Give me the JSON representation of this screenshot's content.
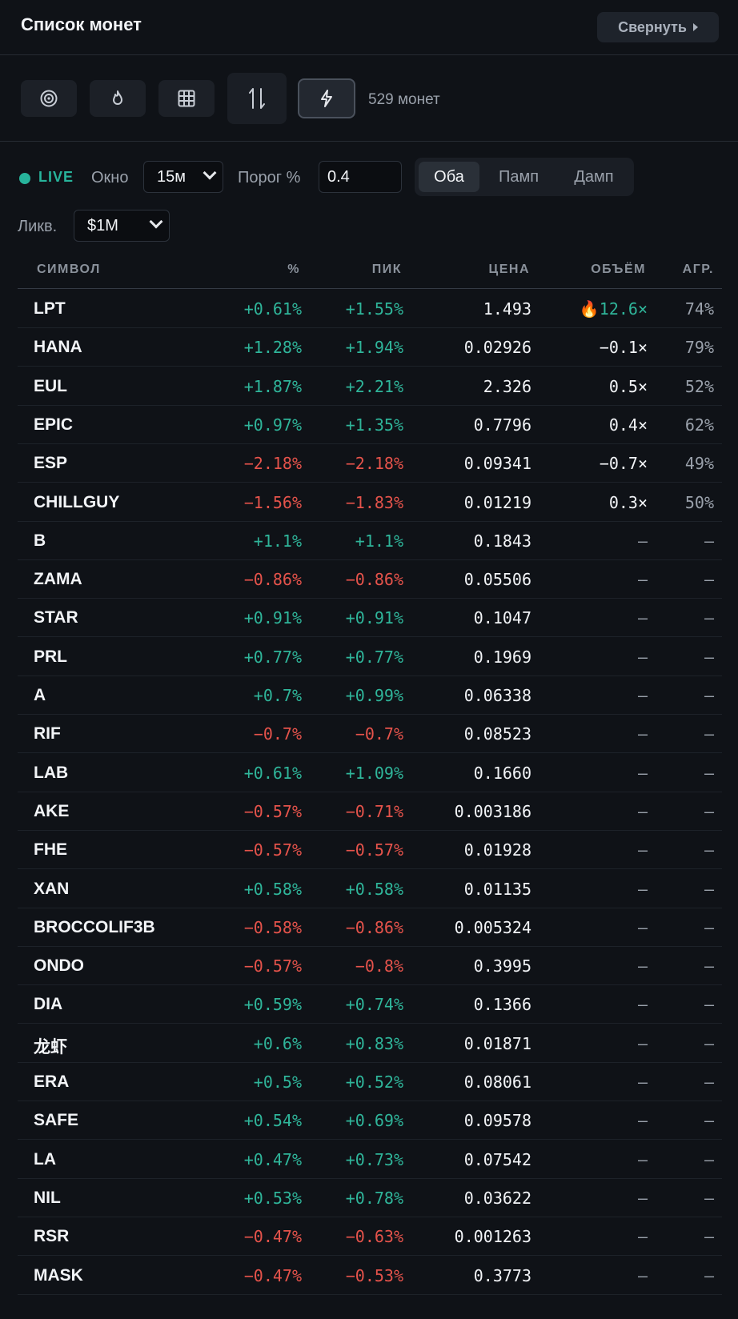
{
  "header": {
    "title": "Список монет",
    "collapse_label": "Свернуть"
  },
  "toolbar": {
    "buttons": [
      "target-icon",
      "flame-icon",
      "grid-icon",
      "sort-icon",
      "bolt-icon"
    ],
    "coin_count": "529 монет"
  },
  "filters": {
    "live_label": "LIVE",
    "window_label": "Окно",
    "window_value": "15м",
    "threshold_label": "Порог %",
    "threshold_value": "0.4",
    "direction_options": [
      "Оба",
      "Памп",
      "Дамп"
    ],
    "direction_selected": "Оба",
    "liq_label": "Ликв.",
    "liq_value": "$1M"
  },
  "colors": {
    "positive": "#2fb59a",
    "negative": "#e5534b",
    "background": "#0f1217"
  },
  "table": {
    "columns": [
      "СИМВОЛ",
      "%",
      "ПИК",
      "ЦЕНА",
      "ОБЪЁМ",
      "АГР."
    ],
    "rows": [
      {
        "symbol": "LPT",
        "pct": "+0.61%",
        "peak": "+1.55%",
        "price": "1.493",
        "volume": "🔥12.6×",
        "agg": "74%"
      },
      {
        "symbol": "HANA",
        "pct": "+1.28%",
        "peak": "+1.94%",
        "price": "0.02926",
        "volume": "−0.1×",
        "agg": "79%"
      },
      {
        "symbol": "EUL",
        "pct": "+1.87%",
        "peak": "+2.21%",
        "price": "2.326",
        "volume": "0.5×",
        "agg": "52%"
      },
      {
        "symbol": "EPIC",
        "pct": "+0.97%",
        "peak": "+1.35%",
        "price": "0.7796",
        "volume": "0.4×",
        "agg": "62%"
      },
      {
        "symbol": "ESP",
        "pct": "−2.18%",
        "peak": "−2.18%",
        "price": "0.09341",
        "volume": "−0.7×",
        "agg": "49%"
      },
      {
        "symbol": "CHILLGUY",
        "pct": "−1.56%",
        "peak": "−1.83%",
        "price": "0.01219",
        "volume": "0.3×",
        "agg": "50%"
      },
      {
        "symbol": "B",
        "pct": "+1.1%",
        "peak": "+1.1%",
        "price": "0.1843",
        "volume": "—",
        "agg": "—"
      },
      {
        "symbol": "ZAMA",
        "pct": "−0.86%",
        "peak": "−0.86%",
        "price": "0.05506",
        "volume": "—",
        "agg": "—"
      },
      {
        "symbol": "STAR",
        "pct": "+0.91%",
        "peak": "+0.91%",
        "price": "0.1047",
        "volume": "—",
        "agg": "—"
      },
      {
        "symbol": "PRL",
        "pct": "+0.77%",
        "peak": "+0.77%",
        "price": "0.1969",
        "volume": "—",
        "agg": "—"
      },
      {
        "symbol": "A",
        "pct": "+0.7%",
        "peak": "+0.99%",
        "price": "0.06338",
        "volume": "—",
        "agg": "—"
      },
      {
        "symbol": "RIF",
        "pct": "−0.7%",
        "peak": "−0.7%",
        "price": "0.08523",
        "volume": "—",
        "agg": "—"
      },
      {
        "symbol": "LAB",
        "pct": "+0.61%",
        "peak": "+1.09%",
        "price": "0.1660",
        "volume": "—",
        "agg": "—"
      },
      {
        "symbol": "AKE",
        "pct": "−0.57%",
        "peak": "−0.71%",
        "price": "0.003186",
        "volume": "—",
        "agg": "—"
      },
      {
        "symbol": "FHE",
        "pct": "−0.57%",
        "peak": "−0.57%",
        "price": "0.01928",
        "volume": "—",
        "agg": "—"
      },
      {
        "symbol": "XAN",
        "pct": "+0.58%",
        "peak": "+0.58%",
        "price": "0.01135",
        "volume": "—",
        "agg": "—"
      },
      {
        "symbol": "BROCCOLIF3B",
        "pct": "−0.58%",
        "peak": "−0.86%",
        "price": "0.005324",
        "volume": "—",
        "agg": "—"
      },
      {
        "symbol": "ONDO",
        "pct": "−0.57%",
        "peak": "−0.8%",
        "price": "0.3995",
        "volume": "—",
        "agg": "—"
      },
      {
        "symbol": "DIA",
        "pct": "+0.59%",
        "peak": "+0.74%",
        "price": "0.1366",
        "volume": "—",
        "agg": "—"
      },
      {
        "symbol": "龙虾",
        "pct": "+0.6%",
        "peak": "+0.83%",
        "price": "0.01871",
        "volume": "—",
        "agg": "—"
      },
      {
        "symbol": "ERA",
        "pct": "+0.5%",
        "peak": "+0.52%",
        "price": "0.08061",
        "volume": "—",
        "agg": "—"
      },
      {
        "symbol": "SAFE",
        "pct": "+0.54%",
        "peak": "+0.69%",
        "price": "0.09578",
        "volume": "—",
        "agg": "—"
      },
      {
        "symbol": "LA",
        "pct": "+0.47%",
        "peak": "+0.73%",
        "price": "0.07542",
        "volume": "—",
        "agg": "—"
      },
      {
        "symbol": "NIL",
        "pct": "+0.53%",
        "peak": "+0.78%",
        "price": "0.03622",
        "volume": "—",
        "agg": "—"
      },
      {
        "symbol": "RSR",
        "pct": "−0.47%",
        "peak": "−0.63%",
        "price": "0.001263",
        "volume": "—",
        "agg": "—"
      },
      {
        "symbol": "MASK",
        "pct": "−0.47%",
        "peak": "−0.53%",
        "price": "0.3773",
        "volume": "—",
        "agg": "—"
      }
    ]
  }
}
